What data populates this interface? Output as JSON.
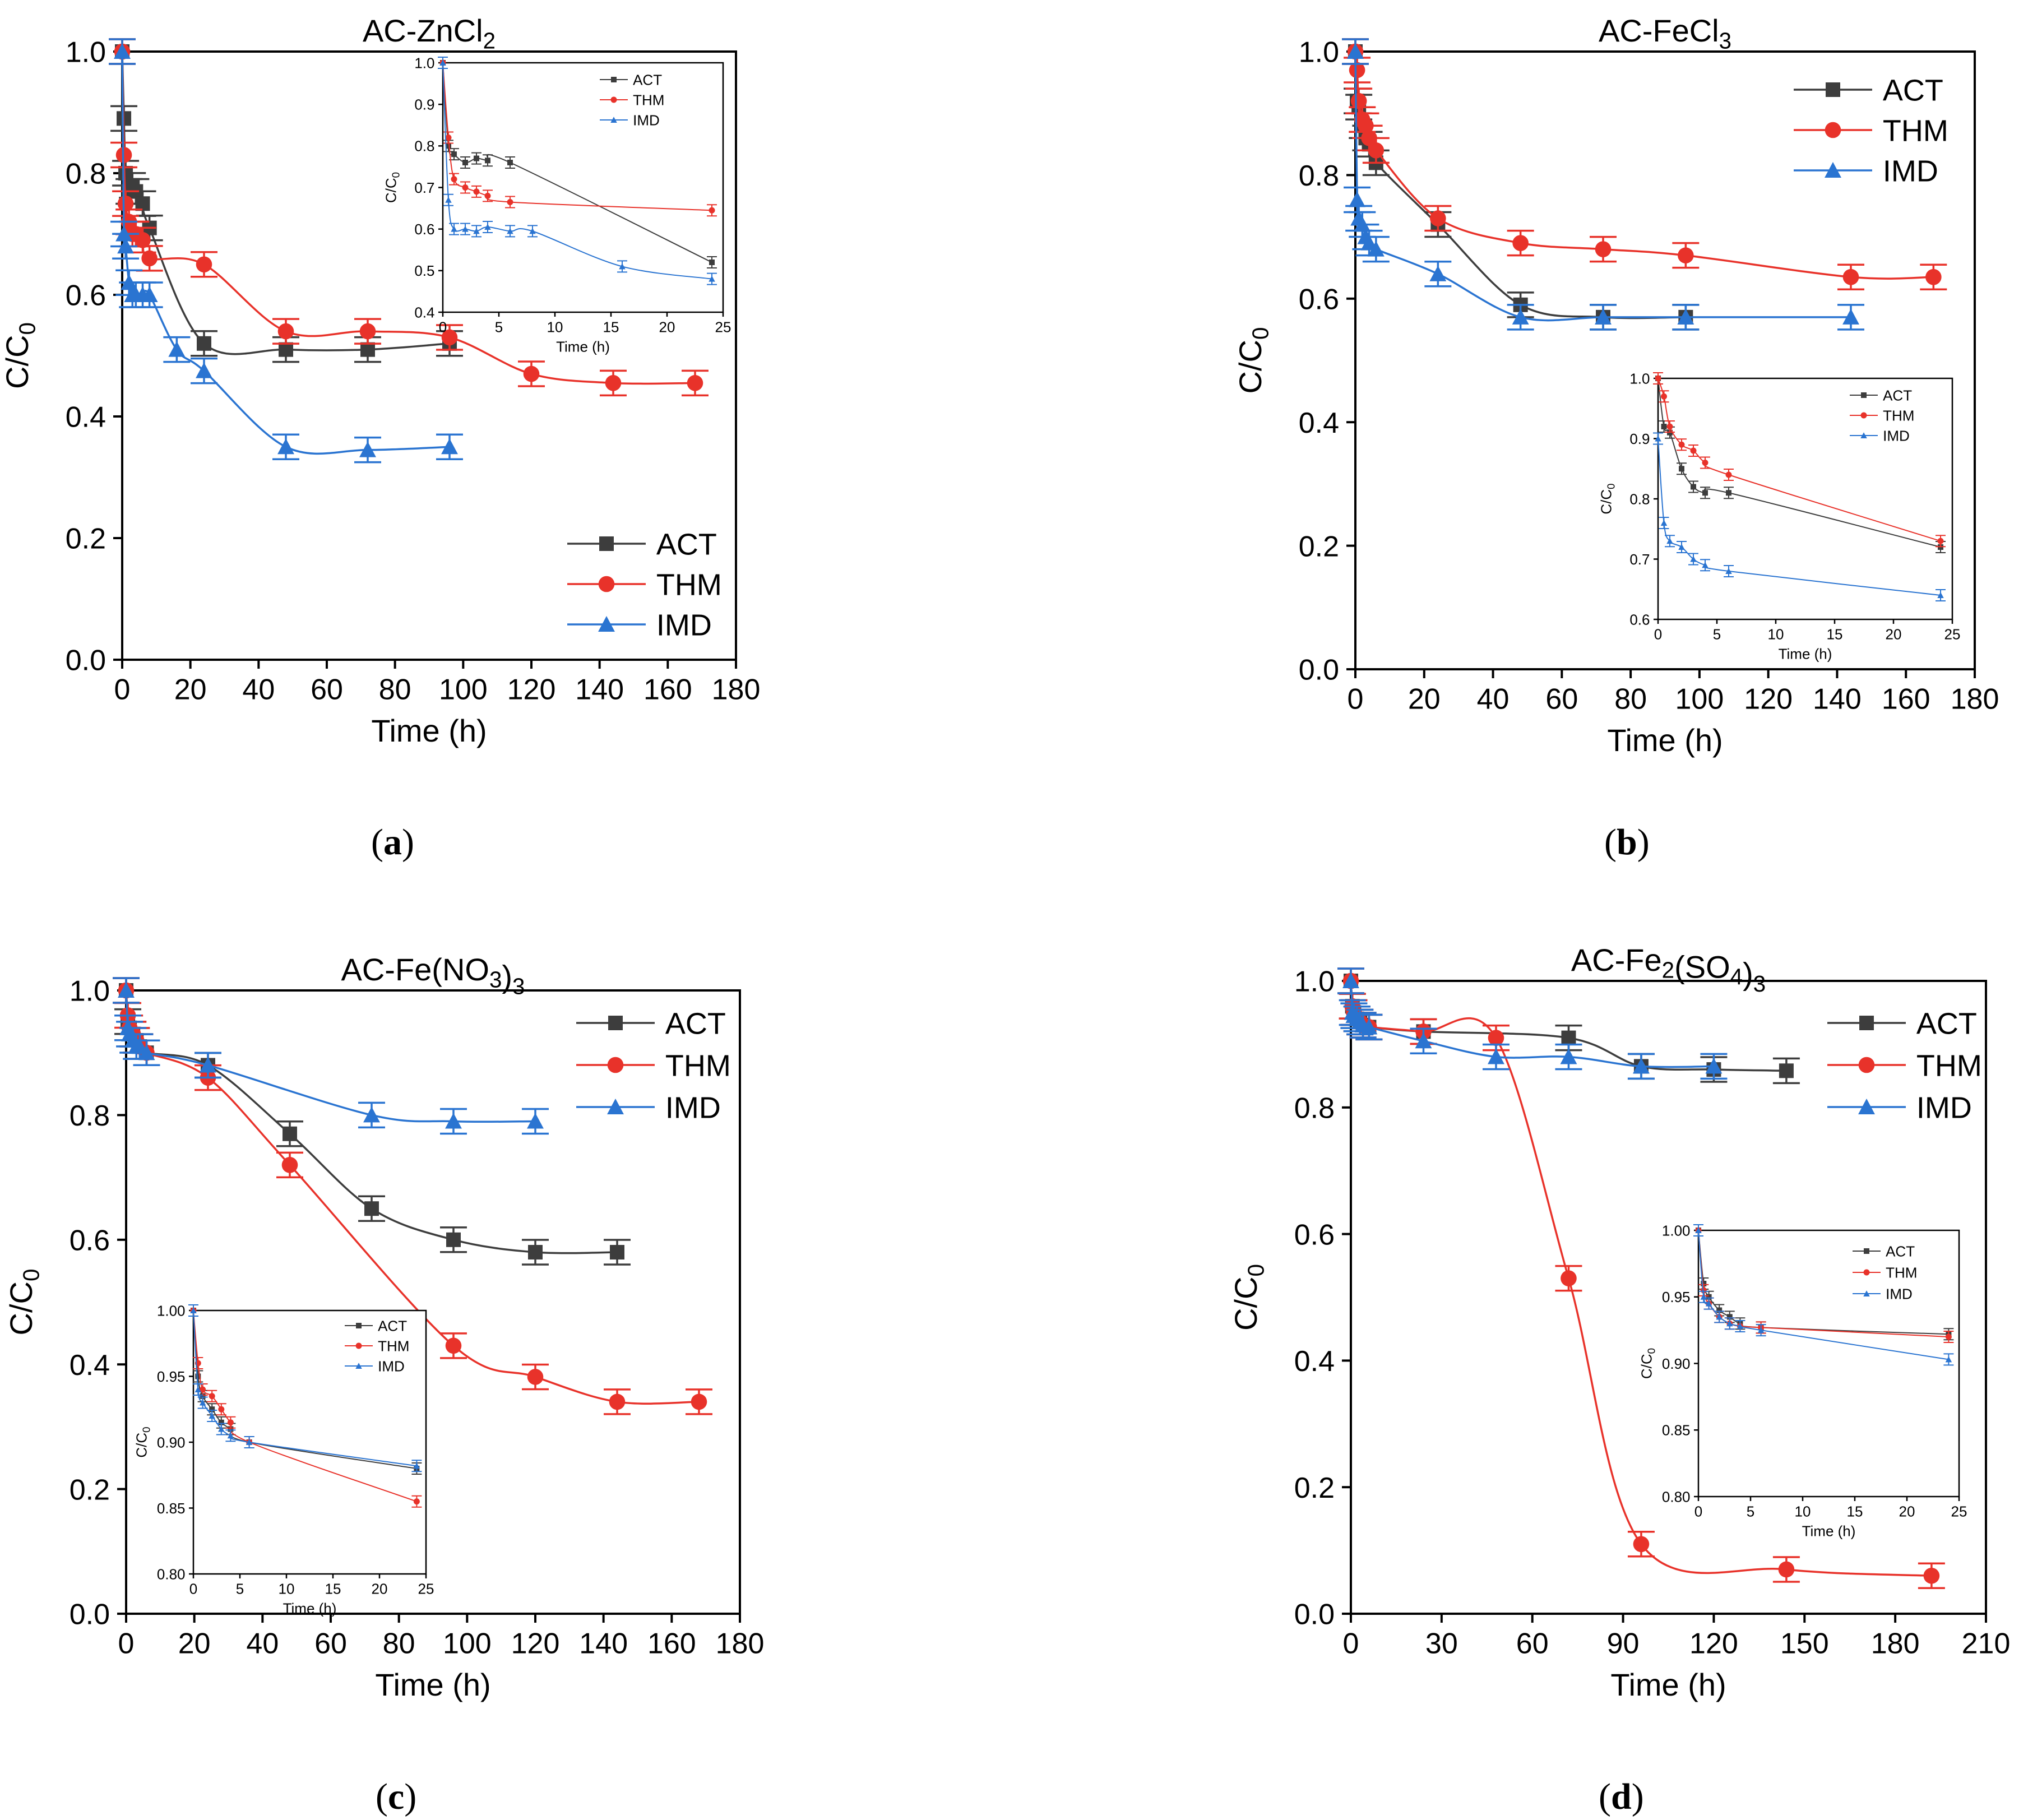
{
  "colors": {
    "ACT": "#3d3d3d",
    "THM": "#e8322a",
    "IMD": "#2a74d1",
    "axis": "#000000"
  },
  "captions": [
    "a",
    "b",
    "c",
    "d"
  ],
  "chart_data": [
    {
      "type": "line",
      "title": "AC-ZnCl2",
      "xlabel": "Time (h)",
      "ylabel": "C/C0",
      "xlim": [
        0,
        180
      ],
      "ylim": [
        0,
        1.0
      ],
      "xticks": [
        0,
        20,
        40,
        60,
        80,
        100,
        120,
        140,
        160,
        180
      ],
      "yticks": [
        0.0,
        0.2,
        0.4,
        0.6,
        0.8,
        1.0
      ],
      "legend": "bottom-right",
      "series": [
        {
          "name": "ACT",
          "x": [
            0,
            0.5,
            1,
            2,
            3,
            4,
            6,
            8,
            24,
            48,
            72,
            96
          ],
          "y": [
            1.0,
            0.89,
            0.8,
            0.77,
            0.78,
            0.77,
            0.75,
            0.71,
            0.52,
            0.51,
            0.51,
            0.52
          ]
        },
        {
          "name": "THM",
          "x": [
            0,
            0.5,
            1,
            2,
            3,
            4,
            6,
            8,
            24,
            48,
            72,
            96,
            120,
            144,
            168
          ],
          "y": [
            1.0,
            0.83,
            0.75,
            0.72,
            0.7,
            0.7,
            0.69,
            0.66,
            0.65,
            0.54,
            0.54,
            0.53,
            0.47,
            0.455,
            0.455
          ]
        },
        {
          "name": "IMD",
          "x": [
            0,
            0.5,
            1,
            2,
            3,
            4,
            6,
            8,
            16,
            24,
            48,
            72,
            96
          ],
          "y": [
            1.0,
            0.7,
            0.68,
            0.62,
            0.6,
            0.6,
            0.6,
            0.6,
            0.51,
            0.475,
            0.35,
            0.345,
            0.35
          ]
        }
      ],
      "inset": {
        "xlabel": "Time (h)",
        "ylabel": "C/C0",
        "xlim": [
          0,
          25
        ],
        "ylim": [
          0.4,
          1.0
        ],
        "xticks": [
          0,
          5,
          10,
          15,
          20,
          25
        ],
        "yticks": [
          0.4,
          0.5,
          0.6,
          0.7,
          0.8,
          0.9,
          1.0
        ],
        "legend": "top-right",
        "series": [
          {
            "name": "ACT",
            "x": [
              0,
              0.5,
              1,
              2,
              3,
              4,
              6,
              24
            ],
            "y": [
              1.0,
              0.8,
              0.78,
              0.76,
              0.77,
              0.765,
              0.76,
              0.52
            ]
          },
          {
            "name": "THM",
            "x": [
              0,
              0.5,
              1,
              2,
              3,
              4,
              6,
              24
            ],
            "y": [
              1.0,
              0.82,
              0.72,
              0.7,
              0.69,
              0.68,
              0.665,
              0.645
            ]
          },
          {
            "name": "IMD",
            "x": [
              0,
              0.5,
              1,
              2,
              3,
              4,
              6,
              8,
              16,
              24
            ],
            "y": [
              1.0,
              0.67,
              0.6,
              0.6,
              0.595,
              0.605,
              0.595,
              0.595,
              0.51,
              0.48
            ]
          }
        ]
      }
    },
    {
      "type": "line",
      "title": "AC-FeCl3",
      "xlabel": "Time (h)",
      "ylabel": "C/C0",
      "xlim": [
        0,
        180
      ],
      "ylim": [
        0,
        1.0
      ],
      "xticks": [
        0,
        20,
        40,
        60,
        80,
        100,
        120,
        140,
        160,
        180
      ],
      "yticks": [
        0.0,
        0.2,
        0.4,
        0.6,
        0.8,
        1.0
      ],
      "legend": "top-right",
      "series": [
        {
          "name": "ACT",
          "x": [
            0,
            0.5,
            1,
            2,
            3,
            4,
            6,
            24,
            48,
            72,
            96
          ],
          "y": [
            1.0,
            0.92,
            0.91,
            0.88,
            0.86,
            0.85,
            0.82,
            0.72,
            0.59,
            0.57,
            0.57
          ]
        },
        {
          "name": "THM",
          "x": [
            0,
            0.5,
            1,
            2,
            3,
            4,
            6,
            24,
            48,
            72,
            96,
            144,
            168
          ],
          "y": [
            1.0,
            0.97,
            0.92,
            0.89,
            0.88,
            0.86,
            0.84,
            0.73,
            0.69,
            0.68,
            0.67,
            0.635,
            0.635
          ]
        },
        {
          "name": "IMD",
          "x": [
            0,
            0.5,
            1,
            2,
            3,
            4,
            6,
            24,
            48,
            72,
            96,
            144
          ],
          "y": [
            1.0,
            0.76,
            0.73,
            0.72,
            0.7,
            0.69,
            0.68,
            0.64,
            0.57,
            0.57,
            0.57,
            0.57
          ]
        }
      ],
      "inset": {
        "xlabel": "Time (h)",
        "ylabel": "C/C0",
        "xlim": [
          0,
          25
        ],
        "ylim": [
          0.6,
          1.0
        ],
        "xticks": [
          0,
          5,
          10,
          15,
          20,
          25
        ],
        "yticks": [
          0.6,
          0.7,
          0.8,
          0.9,
          1.0
        ],
        "legend": "top-right",
        "series": [
          {
            "name": "ACT",
            "x": [
              0,
              0.5,
              1,
              2,
              3,
              4,
              6,
              24
            ],
            "y": [
              1.0,
              0.92,
              0.91,
              0.85,
              0.82,
              0.81,
              0.81,
              0.72
            ]
          },
          {
            "name": "THM",
            "x": [
              0,
              0.5,
              1,
              2,
              3,
              4,
              6,
              24
            ],
            "y": [
              1.0,
              0.97,
              0.92,
              0.89,
              0.88,
              0.86,
              0.84,
              0.73
            ]
          },
          {
            "name": "IMD",
            "x": [
              0,
              0.5,
              1,
              2,
              3,
              4,
              6,
              24
            ],
            "y": [
              0.9,
              0.76,
              0.73,
              0.72,
              0.7,
              0.69,
              0.68,
              0.64
            ]
          }
        ]
      }
    },
    {
      "type": "line",
      "title": "AC-Fe(NO3)3",
      "xlabel": "Time (h)",
      "ylabel": "C/C0",
      "xlim": [
        0,
        180
      ],
      "ylim": [
        0,
        1.0
      ],
      "xticks": [
        0,
        20,
        40,
        60,
        80,
        100,
        120,
        140,
        160,
        180
      ],
      "yticks": [
        0.0,
        0.2,
        0.4,
        0.6,
        0.8,
        1.0
      ],
      "legend": "top-right",
      "series": [
        {
          "name": "ACT",
          "x": [
            0,
            0.5,
            1,
            2,
            3,
            4,
            6,
            24,
            48,
            72,
            96,
            120,
            144
          ],
          "y": [
            1.0,
            0.95,
            0.94,
            0.93,
            0.92,
            0.91,
            0.9,
            0.88,
            0.77,
            0.65,
            0.6,
            0.58,
            0.58
          ]
        },
        {
          "name": "THM",
          "x": [
            0,
            0.5,
            1,
            2,
            3,
            4,
            6,
            24,
            48,
            96,
            120,
            144,
            168
          ],
          "y": [
            1.0,
            0.96,
            0.94,
            0.93,
            0.92,
            0.91,
            0.9,
            0.86,
            0.72,
            0.43,
            0.38,
            0.34,
            0.34
          ]
        },
        {
          "name": "IMD",
          "x": [
            0,
            0.5,
            1,
            2,
            3,
            4,
            6,
            24,
            72,
            96,
            120
          ],
          "y": [
            1.0,
            0.94,
            0.93,
            0.92,
            0.91,
            0.91,
            0.9,
            0.88,
            0.8,
            0.79,
            0.79
          ]
        }
      ],
      "inset": {
        "xlabel": "Time (h)",
        "ylabel": "C/C0",
        "xlim": [
          0,
          25
        ],
        "ylim": [
          0.8,
          1.0
        ],
        "xticks": [
          0,
          5,
          10,
          15,
          20,
          25
        ],
        "yticks": [
          0.8,
          0.85,
          0.9,
          0.95,
          1.0
        ],
        "legend": "top-right",
        "series": [
          {
            "name": "ACT",
            "x": [
              0,
              0.5,
              1,
              2,
              3,
              4,
              6,
              24
            ],
            "y": [
              1.0,
              0.95,
              0.935,
              0.925,
              0.915,
              0.91,
              0.9,
              0.88
            ]
          },
          {
            "name": "THM",
            "x": [
              0,
              0.5,
              1,
              2,
              3,
              4,
              6,
              24
            ],
            "y": [
              1.0,
              0.96,
              0.94,
              0.935,
              0.925,
              0.915,
              0.9,
              0.855
            ]
          },
          {
            "name": "IMD",
            "x": [
              0,
              0.5,
              1,
              2,
              3,
              4,
              6,
              24
            ],
            "y": [
              1.0,
              0.94,
              0.93,
              0.92,
              0.91,
              0.905,
              0.9,
              0.882
            ]
          }
        ]
      }
    },
    {
      "type": "line",
      "title": "AC-Fe2(SO4)3",
      "xlabel": "Time (h)",
      "ylabel": "C/C0",
      "xlim": [
        0,
        210
      ],
      "ylim": [
        0,
        1.0
      ],
      "xticks": [
        0,
        30,
        60,
        90,
        120,
        150,
        180,
        210
      ],
      "yticks": [
        0.0,
        0.2,
        0.4,
        0.6,
        0.8,
        1.0
      ],
      "legend": "top-right",
      "series": [
        {
          "name": "ACT",
          "x": [
            0,
            0.5,
            1,
            2,
            3,
            4,
            6,
            24,
            72,
            96,
            120,
            144
          ],
          "y": [
            1.0,
            0.96,
            0.95,
            0.94,
            0.935,
            0.93,
            0.927,
            0.92,
            0.91,
            0.865,
            0.86,
            0.858
          ]
        },
        {
          "name": "THM",
          "x": [
            0,
            0.5,
            1,
            2,
            3,
            4,
            6,
            24,
            48,
            72,
            96,
            144,
            192
          ],
          "y": [
            1.0,
            0.96,
            0.95,
            0.94,
            0.935,
            0.93,
            0.927,
            0.92,
            0.91,
            0.53,
            0.11,
            0.07,
            0.06
          ]
        },
        {
          "name": "IMD",
          "x": [
            0,
            0.5,
            1,
            2,
            3,
            4,
            6,
            24,
            48,
            72,
            96,
            120
          ],
          "y": [
            1.0,
            0.95,
            0.945,
            0.94,
            0.935,
            0.93,
            0.927,
            0.905,
            0.88,
            0.88,
            0.865,
            0.865
          ]
        }
      ],
      "inset": {
        "xlabel": "Time (h)",
        "ylabel": "C/C0",
        "xlim": [
          0,
          25
        ],
        "ylim": [
          0.8,
          1.0
        ],
        "xticks": [
          0,
          5,
          10,
          15,
          20,
          25
        ],
        "yticks": [
          0.8,
          0.85,
          0.9,
          0.95,
          1.0
        ],
        "legend": "top-right",
        "series": [
          {
            "name": "ACT",
            "x": [
              0,
              0.5,
              1,
              2,
              3,
              4,
              6,
              24
            ],
            "y": [
              1.0,
              0.96,
              0.95,
              0.94,
              0.935,
              0.93,
              0.927,
              0.922
            ]
          },
          {
            "name": "THM",
            "x": [
              0,
              0.5,
              1,
              2,
              3,
              4,
              6,
              24
            ],
            "y": [
              1.0,
              0.955,
              0.945,
              0.935,
              0.93,
              0.928,
              0.927,
              0.92
            ]
          },
          {
            "name": "IMD",
            "x": [
              0,
              0.5,
              1,
              2,
              3,
              4,
              6,
              24
            ],
            "y": [
              1.0,
              0.95,
              0.945,
              0.935,
              0.93,
              0.928,
              0.925,
              0.903
            ]
          }
        ]
      }
    }
  ]
}
